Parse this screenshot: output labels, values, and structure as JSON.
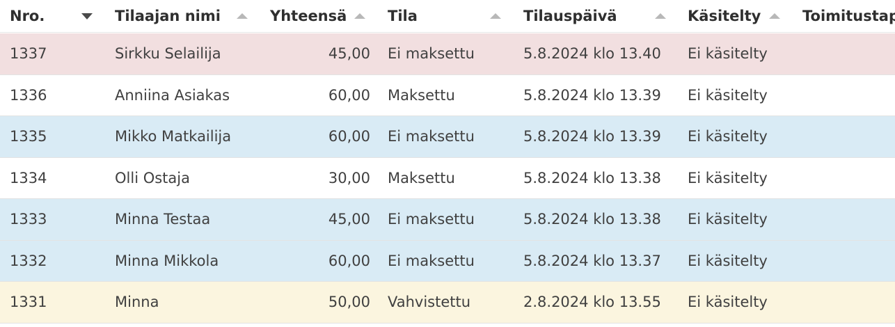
{
  "colors": {
    "unpaid": "#f2dfdf",
    "paid": "#ffffff",
    "pending": "#d9ebf5",
    "confirmed": "#fbf5df"
  },
  "columns": [
    {
      "label": "Nro.",
      "sort": "chevron-down-icon"
    },
    {
      "label": "Tilaajan nimi",
      "sort": "sort-up-icon"
    },
    {
      "label": "Yhteensä",
      "sort": "sort-up-icon"
    },
    {
      "label": "Tila",
      "sort": "sort-up-icon"
    },
    {
      "label": "Tilauspäivä",
      "sort": "sort-up-icon"
    },
    {
      "label": "Käsitelty",
      "sort": "sort-up-icon"
    },
    {
      "label": "Toimitustap",
      "sort": ""
    }
  ],
  "rows": [
    {
      "nro": "1337",
      "name": "Sirkku Selailija",
      "total": "45,00",
      "status": "Ei maksettu",
      "date": "5.8.2024 klo 13.40",
      "handled": "Ei käsitelty",
      "bg": "#f2dfe0"
    },
    {
      "nro": "1336",
      "name": "Anniina Asiakas",
      "total": "60,00",
      "status": "Maksettu",
      "date": "5.8.2024 klo 13.39",
      "handled": "Ei käsitelty",
      "bg": "#ffffff"
    },
    {
      "nro": "1335",
      "name": "Mikko Matkailija",
      "total": "60,00",
      "status": "Ei maksettu",
      "date": "5.8.2024 klo 13.39",
      "handled": "Ei käsitelty",
      "bg": "#d9ebf5"
    },
    {
      "nro": "1334",
      "name": "Olli Ostaja",
      "total": "30,00",
      "status": "Maksettu",
      "date": "5.8.2024 klo 13.38",
      "handled": "Ei käsitelty",
      "bg": "#ffffff"
    },
    {
      "nro": "1333",
      "name": "Minna Testaa",
      "total": "45,00",
      "status": "Ei maksettu",
      "date": "5.8.2024 klo 13.38",
      "handled": "Ei käsitelty",
      "bg": "#d9ebf5"
    },
    {
      "nro": "1332",
      "name": "Minna Mikkola",
      "total": "60,00",
      "status": "Ei maksettu",
      "date": "5.8.2024 klo 13.37",
      "handled": "Ei käsitelty",
      "bg": "#d9ebf5"
    },
    {
      "nro": "1331",
      "name": "Minna",
      "total": "50,00",
      "status": "Vahvistettu",
      "date": "2.8.2024 klo 13.55",
      "handled": "Ei käsitelty",
      "bg": "#fbf5df"
    }
  ]
}
